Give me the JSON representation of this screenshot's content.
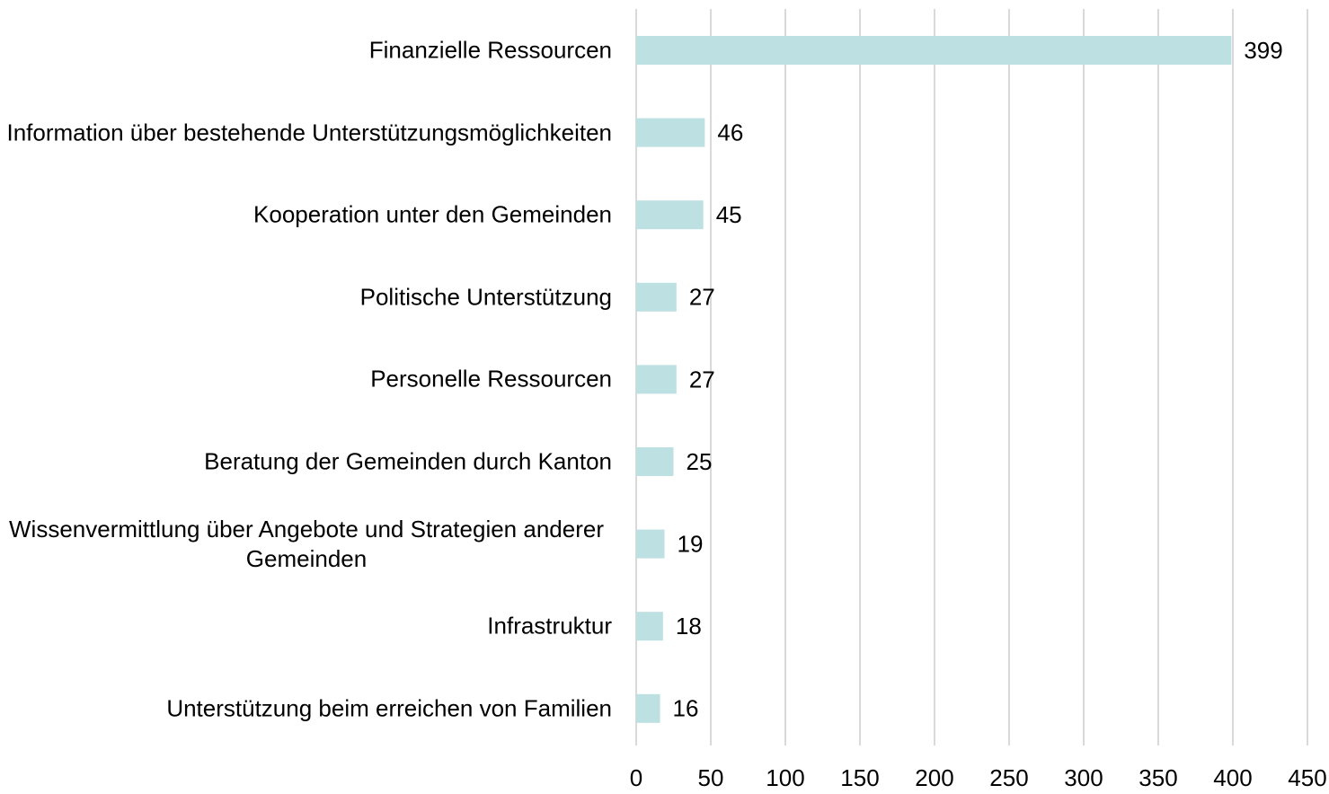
{
  "chart_data": {
    "type": "bar",
    "orientation": "horizontal",
    "categories": [
      "Finanzielle Ressourcen",
      "Information über bestehende Unterstützungsmöglichkeiten",
      "Kooperation unter den Gemeinden",
      "Politische Unterstützung",
      "Personelle Ressourcen",
      "Beratung der Gemeinden durch Kanton",
      "Wissenvermittlung über Angebote und Strategien anderer Gemeinden",
      "Infrastruktur",
      "Unterstützung beim erreichen von Familien"
    ],
    "values": [
      399,
      46,
      45,
      27,
      27,
      25,
      19,
      18,
      16
    ],
    "color": "#bde0e3",
    "xlim": [
      0,
      450
    ],
    "xticks": [
      0,
      50,
      100,
      150,
      200,
      250,
      300,
      350,
      400,
      450
    ],
    "grid": true
  }
}
